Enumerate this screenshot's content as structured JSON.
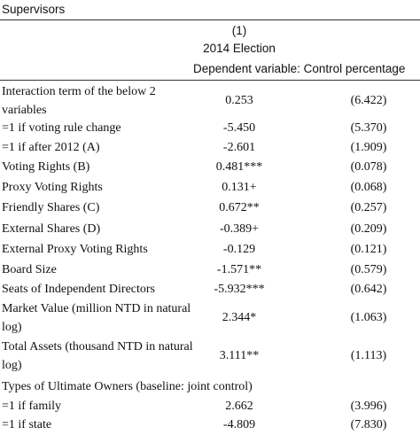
{
  "caption": "Supervisors",
  "header": {
    "model": "(1)",
    "sample": "2014 Election",
    "dependent": "Dependent variable: Control percentage"
  },
  "table": {
    "rows": [
      [
        "Interaction term of the below 2 variables",
        "0.253",
        "(6.422)"
      ],
      [
        "=1 if voting rule change",
        "-5.450",
        "(5.370)"
      ],
      [
        "=1 if after 2012 (A)",
        "-2.601",
        "(1.909)"
      ],
      [
        "Voting Rights (B)",
        "0.481***",
        "(0.078)"
      ],
      [
        "Proxy Voting Rights",
        "0.131+",
        "(0.068)"
      ],
      [
        "Friendly Shares (C)",
        "0.672**",
        "(0.257)"
      ],
      [
        "External Shares (D)",
        "-0.389+",
        "(0.209)"
      ],
      [
        "External Proxy Voting Rights",
        "-0.129",
        "(0.121)"
      ],
      [
        "Board Size",
        "-1.571**",
        "(0.579)"
      ],
      [
        "Seats of Independent Directors",
        "-5.932***",
        "(0.642)"
      ],
      [
        "Market Value (million NTD in natural log)",
        "2.344*",
        "(1.063)"
      ],
      [
        "Total Assets (thousand NTD in natural log)",
        "3.111**",
        "(1.113)"
      ],
      [
        "Types of Ultimate Owners (baseline: joint control)"
      ],
      [
        "=1 if family",
        "2.662",
        "(3.996)"
      ],
      [
        "=1 if state",
        "-4.809",
        "(7.830)"
      ]
    ]
  }
}
